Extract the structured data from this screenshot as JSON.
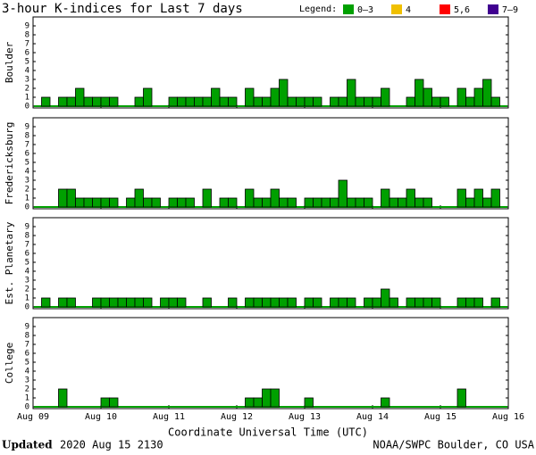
{
  "title": "3-hour K-indices for Last 7 days",
  "legend": {
    "label": "Legend:",
    "items": [
      {
        "name": "0–3",
        "color": "#00a000"
      },
      {
        "name": "4",
        "color": "#f0c000"
      },
      {
        "name": "5,6",
        "color": "#ff0000"
      },
      {
        "name": "7–9",
        "color": "#400090"
      }
    ]
  },
  "x_axis": {
    "title": "Coordinate Universal Time (UTC)",
    "labels": [
      "Aug 09",
      "Aug 10",
      "Aug 11",
      "Aug 12",
      "Aug 13",
      "Aug 14",
      "Aug 15",
      "Aug 16"
    ]
  },
  "footer": {
    "updated": "Updated",
    "time": "2020 Aug 15 2130",
    "source": "NOAA/SWPC Boulder, CO USA"
  },
  "chart_data": [
    {
      "type": "bar",
      "ylabel": "Boulder",
      "color": "#00a000",
      "ylim": [
        0,
        9
      ],
      "yticks": [
        0,
        1,
        2,
        3,
        4,
        5,
        6,
        7,
        8,
        9
      ],
      "values": [
        0,
        1,
        0,
        1,
        1,
        2,
        1,
        1,
        1,
        1,
        0,
        0,
        1,
        2,
        0,
        0,
        1,
        1,
        1,
        1,
        1,
        2,
        1,
        1,
        0,
        2,
        1,
        1,
        2,
        3,
        1,
        1,
        1,
        1,
        0,
        1,
        1,
        3,
        1,
        1,
        1,
        2,
        0,
        0,
        1,
        3,
        2,
        1,
        1,
        0,
        2,
        1,
        2,
        3,
        1,
        0
      ]
    },
    {
      "type": "bar",
      "ylabel": "Fredericksburg",
      "color": "#00a000",
      "ylim": [
        0,
        9
      ],
      "yticks": [
        0,
        1,
        2,
        3,
        4,
        5,
        6,
        7,
        8,
        9
      ],
      "values": [
        0,
        0,
        0,
        2,
        2,
        1,
        1,
        1,
        1,
        1,
        0,
        1,
        2,
        1,
        1,
        0,
        1,
        1,
        1,
        0,
        2,
        0,
        1,
        1,
        0,
        2,
        1,
        1,
        2,
        1,
        1,
        0,
        1,
        1,
        1,
        1,
        3,
        1,
        1,
        1,
        0,
        2,
        1,
        1,
        2,
        1,
        1,
        0,
        0,
        0,
        2,
        1,
        2,
        1,
        2,
        0
      ]
    },
    {
      "type": "bar",
      "ylabel": "Est. Planetary",
      "color": "#00a000",
      "ylim": [
        0,
        9
      ],
      "yticks": [
        0,
        1,
        2,
        3,
        4,
        5,
        6,
        7,
        8,
        9
      ],
      "values": [
        0,
        1,
        0,
        1,
        1,
        0,
        0,
        1,
        1,
        1,
        1,
        1,
        1,
        1,
        0,
        1,
        1,
        1,
        0,
        0,
        1,
        0,
        0,
        1,
        0,
        1,
        1,
        1,
        1,
        1,
        1,
        0,
        1,
        1,
        0,
        1,
        1,
        1,
        0,
        1,
        1,
        2,
        1,
        0,
        1,
        1,
        1,
        1,
        0,
        0,
        1,
        1,
        1,
        0,
        1,
        0
      ]
    },
    {
      "type": "bar",
      "ylabel": "College",
      "color": "#00a000",
      "ylim": [
        0,
        9
      ],
      "yticks": [
        0,
        1,
        2,
        3,
        4,
        5,
        6,
        7,
        8,
        9
      ],
      "values": [
        0,
        0,
        0,
        2,
        0,
        0,
        0,
        0,
        1,
        1,
        0,
        0,
        0,
        0,
        0,
        0,
        0,
        0,
        0,
        0,
        0,
        0,
        0,
        0,
        0,
        1,
        1,
        2,
        2,
        0,
        0,
        0,
        1,
        0,
        0,
        0,
        0,
        0,
        0,
        0,
        0,
        1,
        0,
        0,
        0,
        0,
        0,
        0,
        0,
        0,
        2,
        0,
        0,
        0,
        0,
        0
      ]
    }
  ]
}
